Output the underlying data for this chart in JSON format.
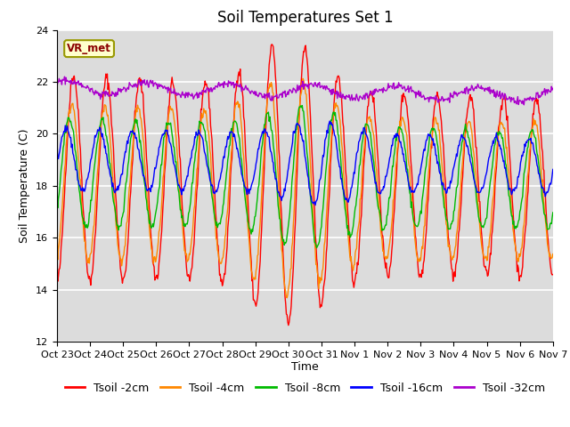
{
  "title": "Soil Temperatures Set 1",
  "xlabel": "Time",
  "ylabel": "Soil Temperature (C)",
  "ylim": [
    12,
    24
  ],
  "yticks": [
    12,
    14,
    16,
    18,
    20,
    22,
    24
  ],
  "xtick_labels": [
    "Oct 23",
    "Oct 24",
    "Oct 25",
    "Oct 26",
    "Oct 27",
    "Oct 28",
    "Oct 29",
    "Oct 30",
    "Oct 31",
    "Nov 1",
    "Nov 2",
    "Nov 3",
    "Nov 4",
    "Nov 5",
    "Nov 6",
    "Nov 7"
  ],
  "legend_labels": [
    "Tsoil -2cm",
    "Tsoil -4cm",
    "Tsoil -8cm",
    "Tsoil -16cm",
    "Tsoil -32cm"
  ],
  "line_colors": [
    "#ff0000",
    "#ff8800",
    "#00bb00",
    "#0000ff",
    "#aa00cc"
  ],
  "vr_met_label": "VR_met",
  "bg_color": "#dcdcdc",
  "fig_bg": "#ffffff",
  "title_fontsize": 12,
  "axis_fontsize": 9,
  "tick_fontsize": 8,
  "legend_fontsize": 9
}
